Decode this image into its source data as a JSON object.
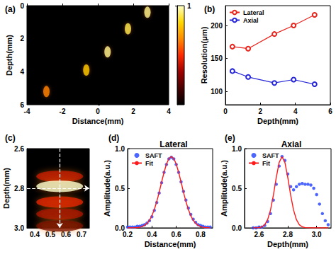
{
  "chart_data": [
    {
      "type": "heatmap",
      "label": "(a)",
      "x_label": "Distance(mm)",
      "y_label": "Depth(mm)",
      "xlim": [
        -4,
        4
      ],
      "xticks": [
        -4,
        -2,
        0,
        2,
        4
      ],
      "ylim": [
        0,
        6
      ],
      "yticks": [
        0,
        2,
        4,
        6
      ],
      "cells": [
        [
          2.8,
          0.4,
          0.95
        ],
        [
          1.7,
          1.4,
          0.9
        ],
        [
          0.55,
          2.8,
          0.95
        ],
        [
          -0.65,
          3.9,
          0.8
        ],
        [
          -2.9,
          5.2,
          0.65
        ]
      ],
      "colorbar": {
        "range": [
          0,
          1
        ],
        "ticks": [
          1
        ]
      },
      "grid": false
    },
    {
      "type": "line",
      "label": "(b)",
      "x_label": "Depth(mm)",
      "y_label": "Resolution(μm)",
      "x": [
        0.4,
        1.3,
        2.8,
        3.9,
        5.1
      ],
      "series": [
        {
          "name": "Lateral",
          "color": "#e8241c",
          "marker": "circle-open",
          "values": [
            168,
            165,
            187,
            200,
            216
          ]
        },
        {
          "name": "Axial",
          "color": "#2626d8",
          "marker": "circle-open",
          "values": [
            131,
            122,
            113,
            118,
            111
          ]
        }
      ],
      "xlim": [
        0,
        6
      ],
      "xticks": [
        0,
        2,
        4,
        6
      ],
      "ylim": [
        80,
        230
      ],
      "yticks": [
        100,
        150,
        200
      ],
      "legend": "upper left",
      "grid": false
    },
    {
      "type": "heatmap",
      "label": "(c)",
      "y_label": "Depth(mm)",
      "xlim": [
        0.35,
        0.75
      ],
      "xticks": [
        0.4,
        0.5,
        0.6,
        0.7
      ],
      "ylim": [
        2.6,
        3.0
      ],
      "yticks": [
        2.6,
        2.8,
        {
          "value": 3.0,
          "label": "3.0"
        }
      ],
      "cells": [
        [
          0.56,
          2.74,
          0.4
        ],
        [
          0.56,
          2.87,
          0.45
        ],
        [
          0.56,
          2.93,
          0.35
        ],
        [
          0.56,
          2.99,
          0.25
        ],
        [
          0.56,
          2.79,
          1.0
        ]
      ],
      "crosshair": {
        "x": 0.56,
        "y": 2.8
      },
      "grid": false
    },
    {
      "type": "line",
      "label": "(d)",
      "title": "Lateral",
      "x_label": "Distance(mm)",
      "y_label": "Amplitude(a.u.)",
      "x": [
        0.2,
        0.22,
        0.24,
        0.26,
        0.28,
        0.3,
        0.32,
        0.34,
        0.36,
        0.38,
        0.4,
        0.42,
        0.44,
        0.46,
        0.48,
        0.5,
        0.52,
        0.54,
        0.56,
        0.58,
        0.6,
        0.62,
        0.64,
        0.66,
        0.68,
        0.7,
        0.72,
        0.74,
        0.76,
        0.78,
        0.8,
        0.82,
        0.84,
        0.86,
        0.88
      ],
      "series": [
        {
          "name": "SAFT",
          "type": "scatter",
          "color": "#1f3fff",
          "marker": "circle",
          "values": [
            0.01,
            0.01,
            0.01,
            0.01,
            0.02,
            0.02,
            0.03,
            0.04,
            0.06,
            0.09,
            0.14,
            0.22,
            0.32,
            0.44,
            0.57,
            0.7,
            0.8,
            0.87,
            0.89,
            0.87,
            0.8,
            0.7,
            0.58,
            0.46,
            0.35,
            0.25,
            0.17,
            0.11,
            0.07,
            0.04,
            0.03,
            0.02,
            0.01,
            0.01,
            0.01
          ]
        },
        {
          "name": "Fit",
          "type": "line",
          "color": "#ff1a1a",
          "marker": "none",
          "values": [
            0,
            0,
            0.001,
            0.002,
            0.004,
            0.008,
            0.017,
            0.032,
            0.057,
            0.096,
            0.153,
            0.232,
            0.332,
            0.45,
            0.578,
            0.701,
            0.806,
            0.875,
            0.9,
            0.875,
            0.806,
            0.701,
            0.578,
            0.45,
            0.332,
            0.232,
            0.153,
            0.096,
            0.057,
            0.032,
            0.017,
            0.008,
            0.004,
            0.002,
            0.001
          ]
        }
      ],
      "xlim": [
        0.2,
        0.9
      ],
      "xticks": [
        0.2,
        0.4,
        0.6,
        0.8
      ],
      "ylim": [
        0,
        1
      ],
      "yticks": [
        {
          "value": 0,
          "label": "0.0"
        },
        0.5,
        {
          "value": 1,
          "label": "1.0"
        }
      ],
      "legend": "upper left",
      "grid": false
    },
    {
      "type": "line",
      "label": "(e)",
      "title": "Axial",
      "x_label": "Depth(mm)",
      "y_label": "Amplitude(a.u.)",
      "x": [
        2.56,
        2.58,
        2.6,
        2.62,
        2.64,
        2.66,
        2.68,
        2.7,
        2.72,
        2.74,
        2.76,
        2.78,
        2.8,
        2.82,
        2.84,
        2.86,
        2.88,
        2.9,
        2.92,
        2.94,
        2.96,
        2.98,
        3.0,
        3.02,
        3.04,
        3.06,
        3.08
      ],
      "series": [
        {
          "name": "SAFT",
          "type": "scatter",
          "color": "#1f3fff",
          "marker": "circle",
          "values": [
            0,
            0,
            0.01,
            0.01,
            0.03,
            0.08,
            0.18,
            0.35,
            0.55,
            0.78,
            0.9,
            0.85,
            0.68,
            0.52,
            0.48,
            0.52,
            0.55,
            0.56,
            0.55,
            0.55,
            0.54,
            0.5,
            0.42,
            0.3,
            0.18,
            0.09,
            0.04
          ]
        },
        {
          "name": "Fit",
          "type": "line",
          "color": "#ff1a1a",
          "marker": "none",
          "values": [
            0,
            0.001,
            0.003,
            0.013,
            0.039,
            0.103,
            0.224,
            0.411,
            0.635,
            0.825,
            0.9,
            0.825,
            0.635,
            0.411,
            0.224,
            0.103,
            0.039,
            0.013,
            0.003,
            0.001,
            0,
            0,
            0,
            0,
            0,
            0,
            0
          ]
        }
      ],
      "xlim": [
        2.5,
        3.1
      ],
      "xticks": [
        2.6,
        2.8,
        {
          "value": 3.0,
          "label": "3.0"
        }
      ],
      "ylim": [
        0,
        1
      ],
      "yticks": [
        {
          "value": 0,
          "label": "0.0"
        },
        0.5,
        {
          "value": 1,
          "label": "1.0"
        }
      ],
      "legend": "upper left",
      "grid": false
    }
  ]
}
